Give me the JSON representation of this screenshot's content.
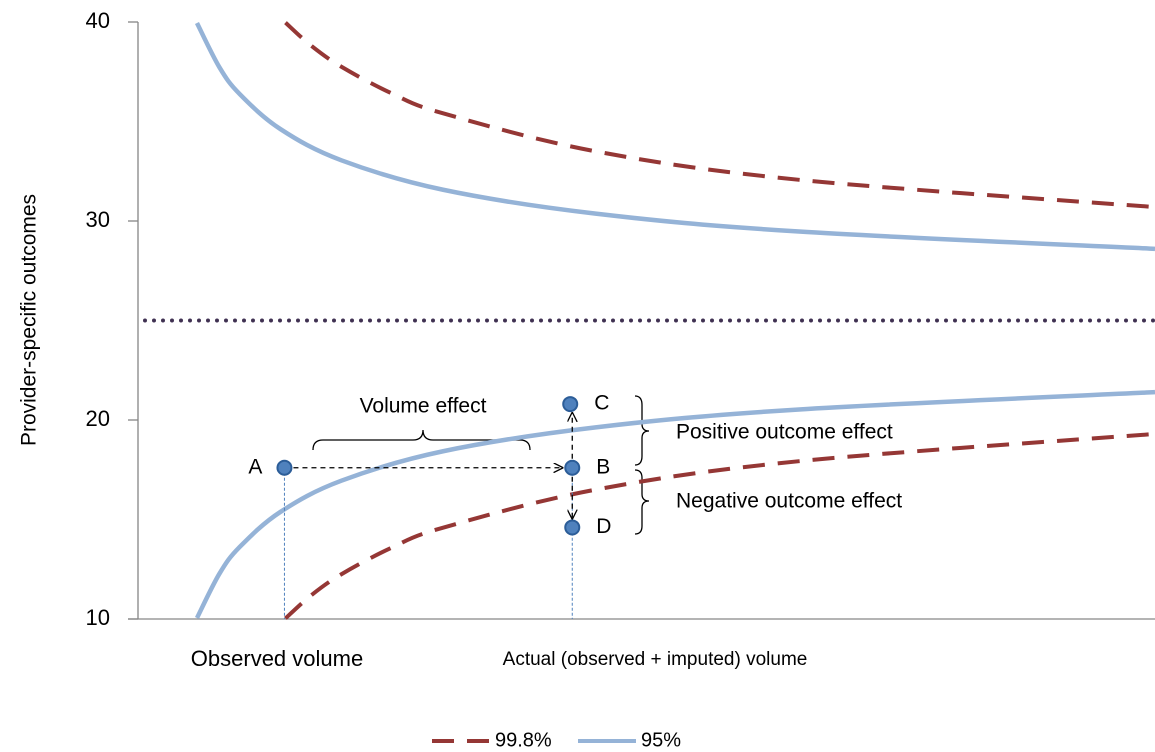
{
  "chart_data": {
    "type": "line",
    "ylabel": "Provider-specific outcomes",
    "ylim": [
      10,
      40
    ],
    "yticks": [
      10,
      20,
      30,
      40
    ],
    "xlim": [
      0,
      100
    ],
    "x_labels": [
      "Observed volume",
      "Actual (observed + imputed) volume"
    ],
    "target": 25,
    "target_color": "#403152",
    "series": [
      {
        "name": "99.8%",
        "color": "#953735",
        "dashed": true,
        "x": [
          14.5,
          17,
          20,
          25,
          30,
          45,
          65,
          100,
          100,
          14.5,
          17,
          20,
          25,
          30,
          45,
          65,
          100
        ],
        "values": [
          39.97,
          38.82,
          37.75,
          36.4,
          35.41,
          33.5,
          32.07,
          30.7,
          null,
          10.03,
          11.18,
          12.25,
          13.6,
          14.59,
          16.5,
          17.93,
          19.3
        ]
      },
      {
        "name": "95%",
        "color": "#95b3d7",
        "dashed": false,
        "x": [
          5.8,
          8,
          10,
          14,
          20,
          30,
          45,
          65,
          100,
          100,
          5.8,
          8,
          10,
          14,
          20,
          30,
          45,
          65,
          100
        ],
        "values": [
          39.95,
          37.73,
          36.38,
          34.62,
          33.05,
          31.57,
          30.37,
          29.47,
          28.6,
          null,
          10.05,
          12.27,
          13.62,
          15.38,
          16.95,
          18.43,
          19.63,
          20.53,
          21.4
        ]
      }
    ],
    "points": {
      "labels": [
        "A",
        "B",
        "C",
        "D"
      ],
      "x": [
        14.4,
        42.7,
        42.5,
        42.7
      ],
      "values": [
        17.6,
        17.6,
        20.8,
        14.6
      ],
      "color": "#4f81bd"
    },
    "annotations": [
      "Volume effect",
      "Positive outcome  effect",
      "Negative outcome effect"
    ]
  }
}
